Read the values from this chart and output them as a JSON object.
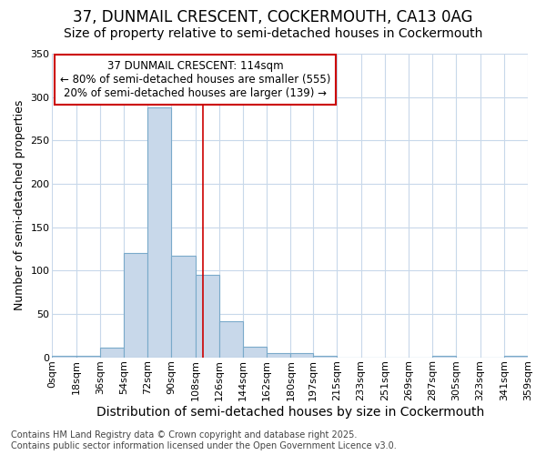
{
  "title": "37, DUNMAIL CRESCENT, COCKERMOUTH, CA13 0AG",
  "subtitle": "Size of property relative to semi-detached houses in Cockermouth",
  "xlabel": "Distribution of semi-detached houses by size in Cockermouth",
  "ylabel": "Number of semi-detached properties",
  "footnote1": "Contains HM Land Registry data © Crown copyright and database right 2025.",
  "footnote2": "Contains public sector information licensed under the Open Government Licence v3.0.",
  "annotation_title": "37 DUNMAIL CRESCENT: 114sqm",
  "annotation_line1": "← 80% of semi-detached houses are smaller (555)",
  "annotation_line2": "20% of semi-detached houses are larger (139) →",
  "property_size": 114,
  "bin_edges": [
    0,
    18,
    36,
    54,
    72,
    90,
    108,
    126,
    144,
    162,
    180,
    197,
    215,
    233,
    251,
    269,
    287,
    305,
    323,
    341,
    359
  ],
  "bin_counts": [
    2,
    2,
    11,
    120,
    288,
    117,
    95,
    41,
    12,
    5,
    5,
    2,
    0,
    0,
    0,
    0,
    2,
    0,
    0,
    2
  ],
  "bar_facecolor": "#c8d8ea",
  "bar_edgecolor": "#7aaaca",
  "vline_color": "#cc0000",
  "annotation_box_facecolor": "#ffffff",
  "annotation_box_edgecolor": "#cc0000",
  "plot_background_color": "#ffffff",
  "fig_background_color": "#ffffff",
  "grid_color": "#c8d8ea",
  "tick_labels": [
    "0sqm",
    "18sqm",
    "36sqm",
    "54sqm",
    "72sqm",
    "90sqm",
    "108sqm",
    "126sqm",
    "144sqm",
    "162sqm",
    "180sqm",
    "197sqm",
    "215sqm",
    "233sqm",
    "251sqm",
    "269sqm",
    "287sqm",
    "305sqm",
    "323sqm",
    "341sqm",
    "359sqm"
  ],
  "ylim": [
    0,
    350
  ],
  "yticks": [
    0,
    50,
    100,
    150,
    200,
    250,
    300,
    350
  ],
  "title_fontsize": 12,
  "subtitle_fontsize": 10,
  "xlabel_fontsize": 10,
  "ylabel_fontsize": 9,
  "tick_fontsize": 8,
  "annotation_fontsize": 8.5,
  "footnote_fontsize": 7
}
